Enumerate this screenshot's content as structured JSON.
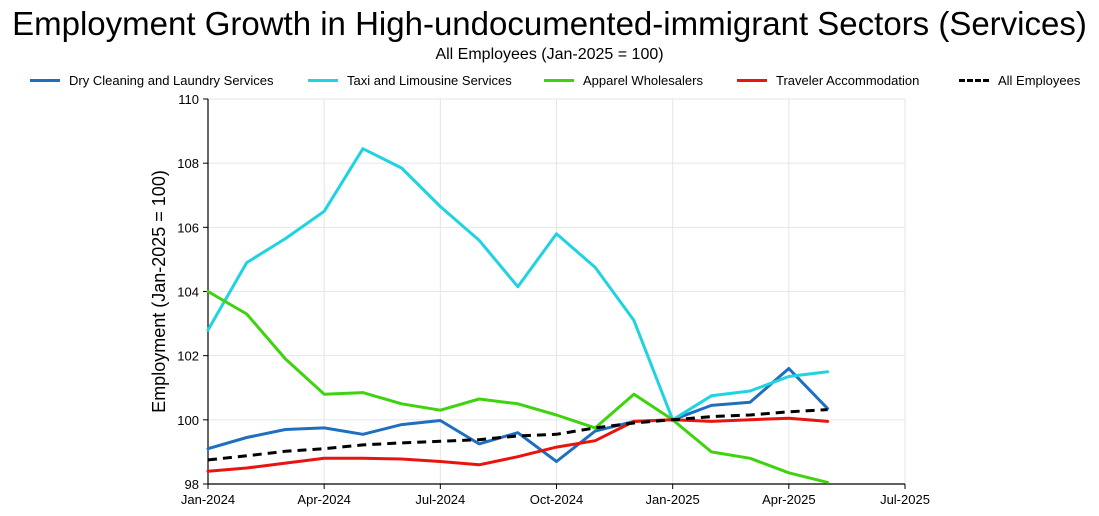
{
  "chart_data": {
    "type": "line",
    "title": "Employment Growth in High-undocumented-immigrant Sectors (Services)",
    "subtitle": "All Employees (Jan-2025 = 100)",
    "xlabel": "",
    "ylabel": "Employment (Jan-2025 = 100)",
    "ylim": [
      98,
      110
    ],
    "yticks": [
      "98",
      "100",
      "102",
      "104",
      "106",
      "108",
      "110"
    ],
    "xtick_labels": [
      "Jan-2024",
      "Apr-2024",
      "Jul-2024",
      "Oct-2024",
      "Jan-2025",
      "Apr-2025",
      "Jul-2025"
    ],
    "x_months": [
      "Jan-2024",
      "Feb-2024",
      "Mar-2024",
      "Apr-2024",
      "May-2024",
      "Jun-2024",
      "Jul-2024",
      "Aug-2024",
      "Sep-2024",
      "Oct-2024",
      "Nov-2024",
      "Dec-2024",
      "Jan-2025",
      "Feb-2025",
      "Mar-2025",
      "Apr-2025",
      "May-2025"
    ],
    "grid": true,
    "legend_position": "top",
    "series": [
      {
        "name": "Dry Cleaning and Laundry Services",
        "color": "#1f6fc0",
        "dashed": false,
        "values": [
          99.1,
          99.45,
          99.7,
          99.75,
          99.55,
          99.85,
          99.98,
          99.25,
          99.6,
          98.7,
          99.65,
          99.95,
          100.0,
          100.45,
          100.55,
          101.6,
          100.35
        ]
      },
      {
        "name": "Taxi and Limousine Services",
        "color": "#1fd3e0",
        "dashed": false,
        "values": [
          102.8,
          104.9,
          105.65,
          106.5,
          108.45,
          107.85,
          106.65,
          105.6,
          104.15,
          105.8,
          104.75,
          103.1,
          100.0,
          100.75,
          100.9,
          101.35,
          101.5
        ]
      },
      {
        "name": "Apparel Wholesalers",
        "color": "#3fd30f",
        "dashed": false,
        "values": [
          104.0,
          103.3,
          101.9,
          100.8,
          100.85,
          100.5,
          100.3,
          100.65,
          100.5,
          100.15,
          99.75,
          100.8,
          100.0,
          99.0,
          98.8,
          98.35,
          98.05
        ]
      },
      {
        "name": "Traveler Accommodation",
        "color": "#e8140f",
        "dashed": false,
        "values": [
          98.4,
          98.5,
          98.65,
          98.8,
          98.8,
          98.78,
          98.7,
          98.6,
          98.85,
          99.15,
          99.35,
          99.95,
          100.0,
          99.95,
          100.0,
          100.05,
          99.95
        ]
      },
      {
        "name": "All Employees",
        "color": "#000000",
        "dashed": true,
        "values": [
          98.75,
          98.88,
          99.02,
          99.1,
          99.22,
          99.28,
          99.33,
          99.38,
          99.5,
          99.55,
          99.75,
          99.9,
          100.0,
          100.1,
          100.15,
          100.25,
          100.32
        ]
      }
    ]
  }
}
